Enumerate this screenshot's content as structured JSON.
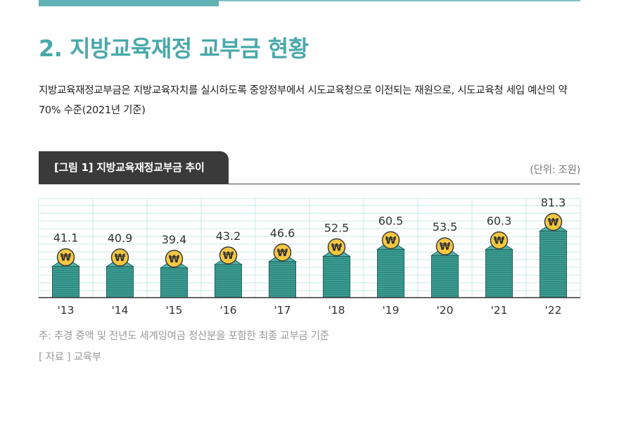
{
  "heading": "2. 지방교육재정 교부금 현황",
  "description": "지방교육재정교부금은 지방교육자치를 실시하도록 중앙정부에서 시도교육청으로 이전되는 재원으로, 시도교육청 세입 예산의 약 70% 수준(2021년 기준)",
  "figure_label": "[그림 1] 지방교육재정교부금 추이",
  "unit_label": "(단위: 조원)",
  "note": "주: 추경 증액 및 전년도 세계잉여금 정산분을 포함한 최종 교부금 기준",
  "source": "[ 자료 ] 교육부",
  "colors": {
    "accent": "#4aa8aa",
    "bar": "#3a9e94",
    "bar_dark": "#1f5f59",
    "coin": "#f5c842",
    "grid": "#c9e8e6",
    "tab": "#3a3a3a"
  },
  "chart_data": {
    "type": "bar",
    "categories": [
      "'13",
      "'14",
      "'15",
      "'16",
      "'17",
      "'18",
      "'19",
      "'20",
      "'21",
      "'22"
    ],
    "values": [
      41.1,
      40.9,
      39.4,
      43.2,
      46.6,
      52.5,
      60.5,
      53.5,
      60.3,
      81.3
    ],
    "title": "",
    "xlabel": "",
    "ylabel": "",
    "unit": "조원",
    "grid": true,
    "legend": "none"
  }
}
